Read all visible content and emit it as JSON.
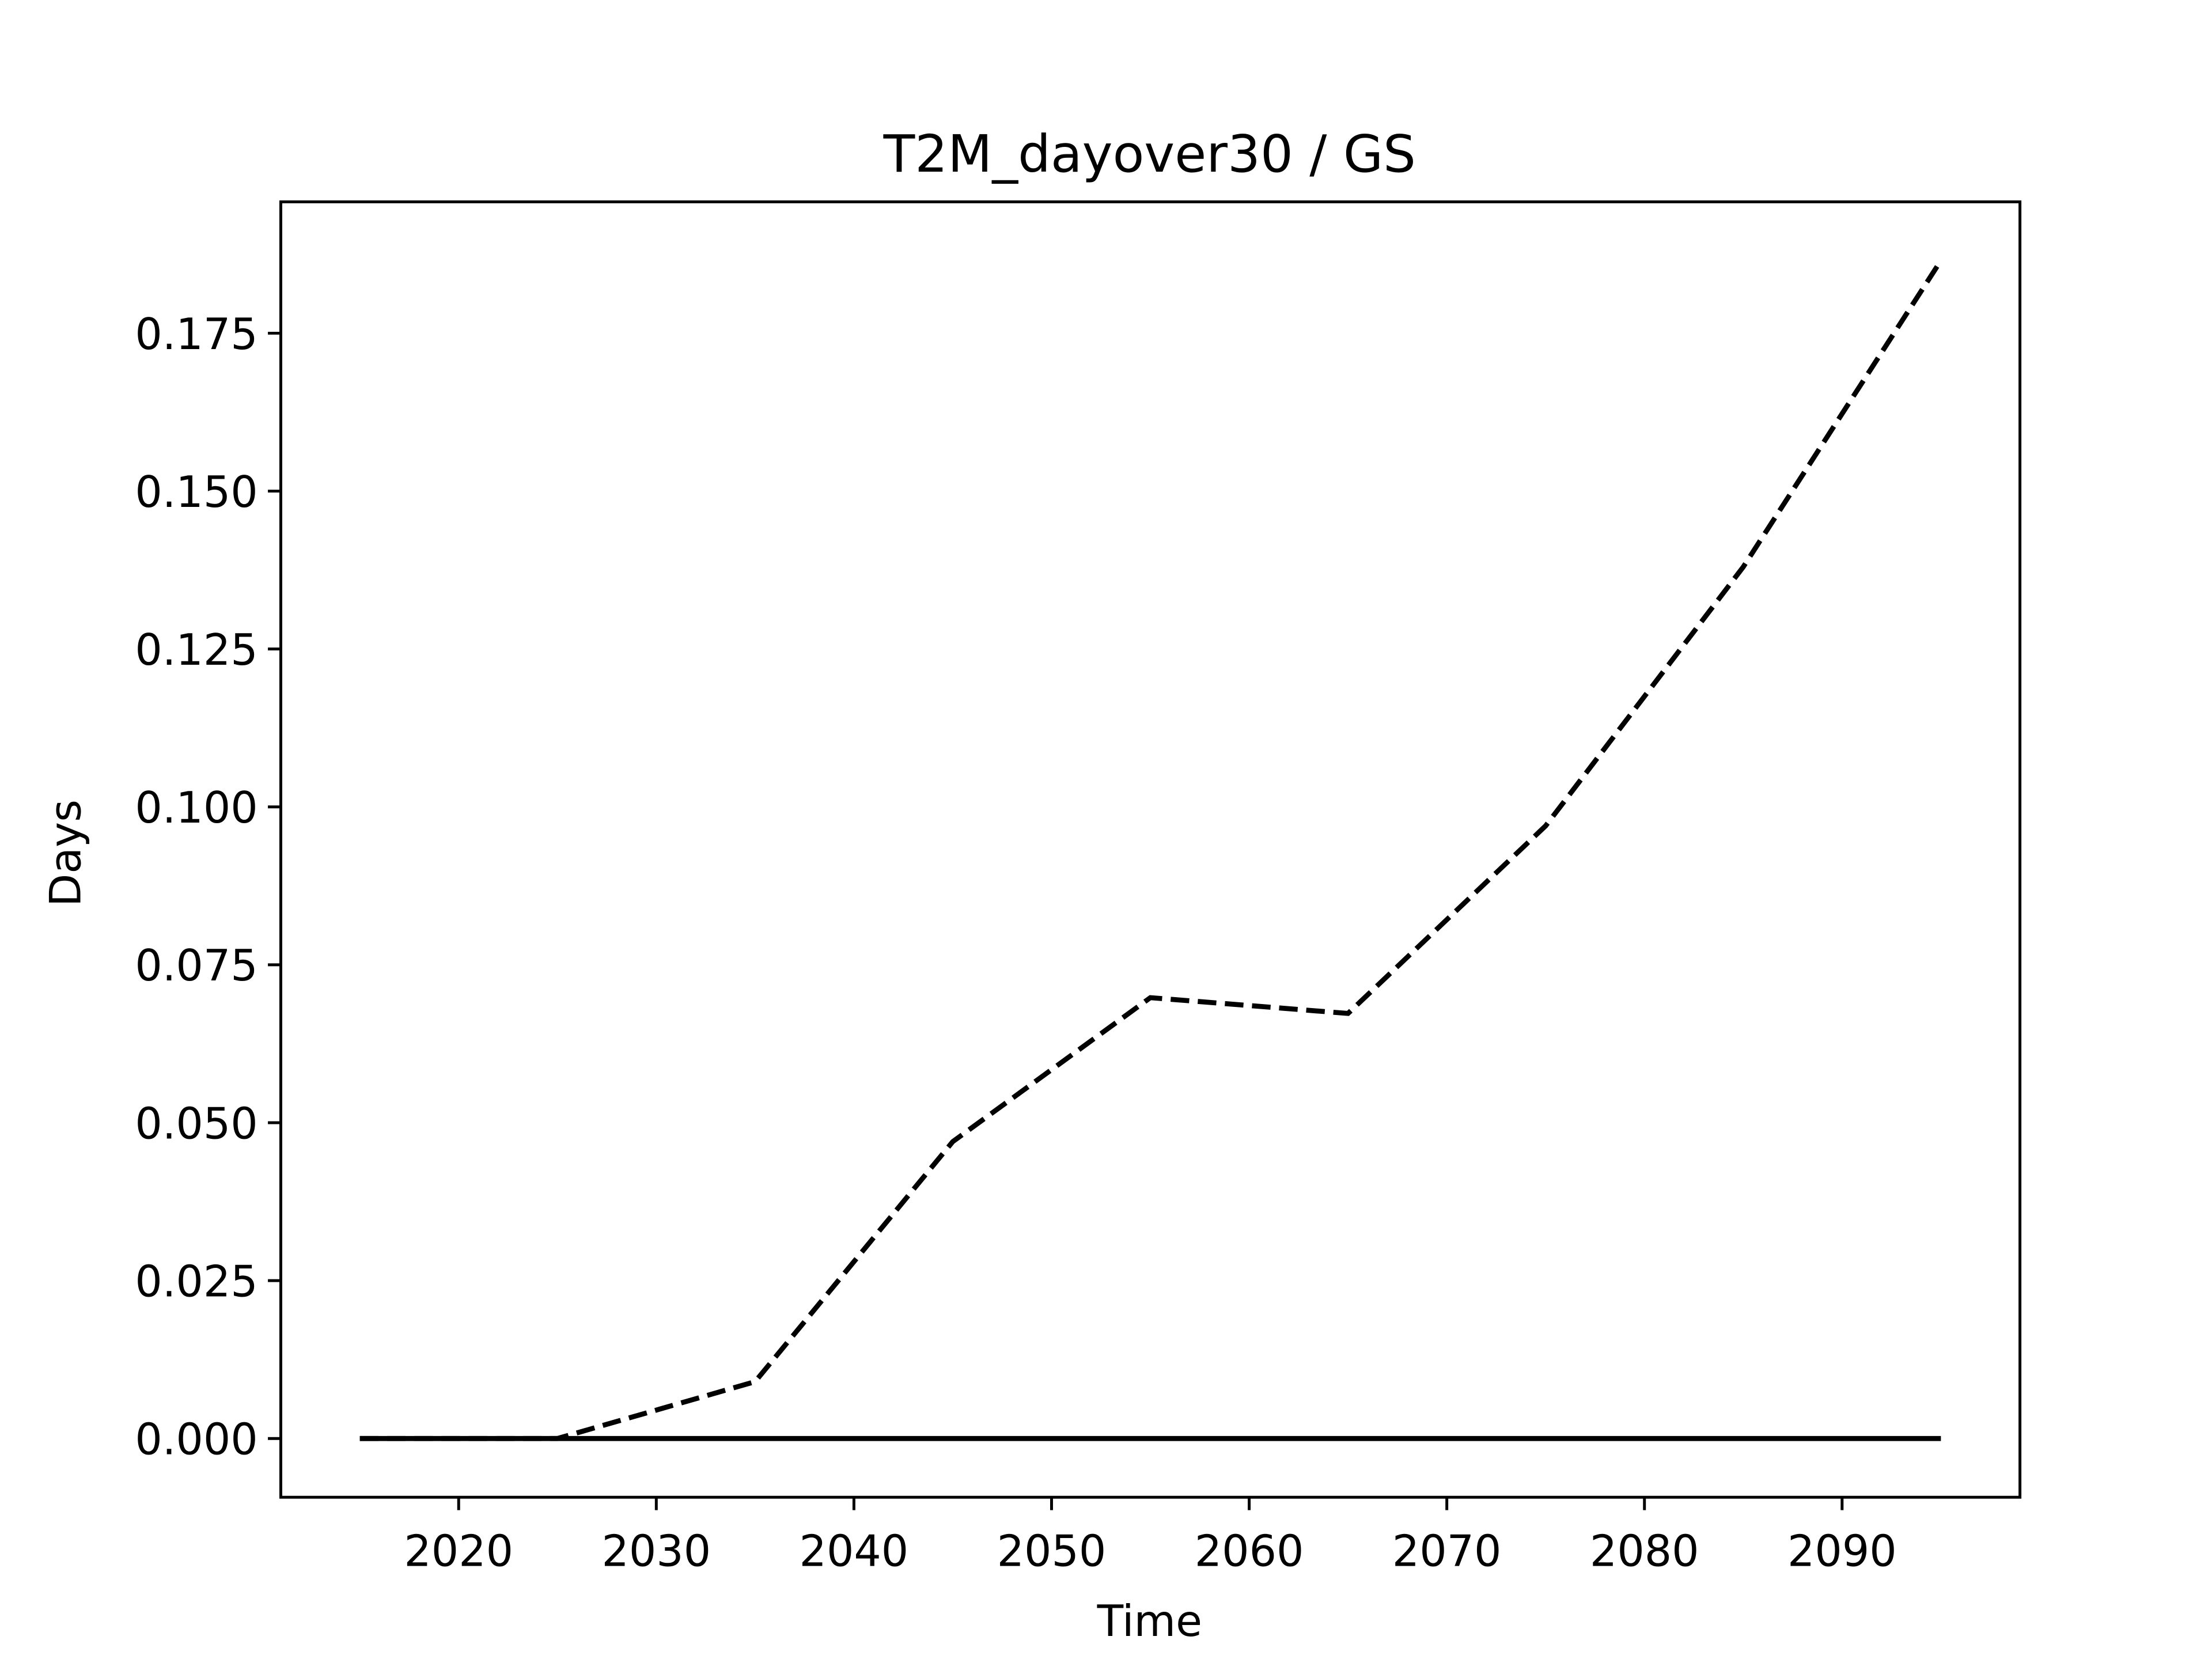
{
  "chart_data": {
    "type": "line",
    "title": "T2M_dayover30 / GS",
    "xlabel": "Time",
    "ylabel": "Days",
    "x": [
      2015,
      2025,
      2035,
      2045,
      2055,
      2065,
      2075,
      2085,
      2095
    ],
    "series": [
      {
        "color": "#000000",
        "linestyle": "dashed",
        "values": [
          0,
          0,
          0.009,
          0.047,
          0.0698,
          0.0673,
          0.097,
          0.138,
          0.1865
        ]
      },
      {
        "color": "#000000",
        "linestyle": "solid",
        "values": [
          0,
          0,
          0,
          0,
          0,
          0,
          0,
          0,
          0
        ]
      }
    ],
    "xlim": [
      2011,
      2099
    ],
    "xticks": [
      2020,
      2030,
      2040,
      2050,
      2060,
      2070,
      2080,
      2090
    ],
    "ylim": [
      -0.0093,
      0.1958
    ],
    "yticks": [
      {
        "value": 0,
        "label": "0.000"
      },
      {
        "value": 0.025,
        "label": "0.025"
      },
      {
        "value": 0.05,
        "label": "0.050"
      },
      {
        "value": 0.075,
        "label": "0.075"
      },
      {
        "value": 0.1,
        "label": "0.100"
      },
      {
        "value": 0.125,
        "label": "0.125"
      },
      {
        "value": 0.15,
        "label": "0.150"
      },
      {
        "value": 0.175,
        "label": "0.175"
      }
    ],
    "grid": false
  }
}
